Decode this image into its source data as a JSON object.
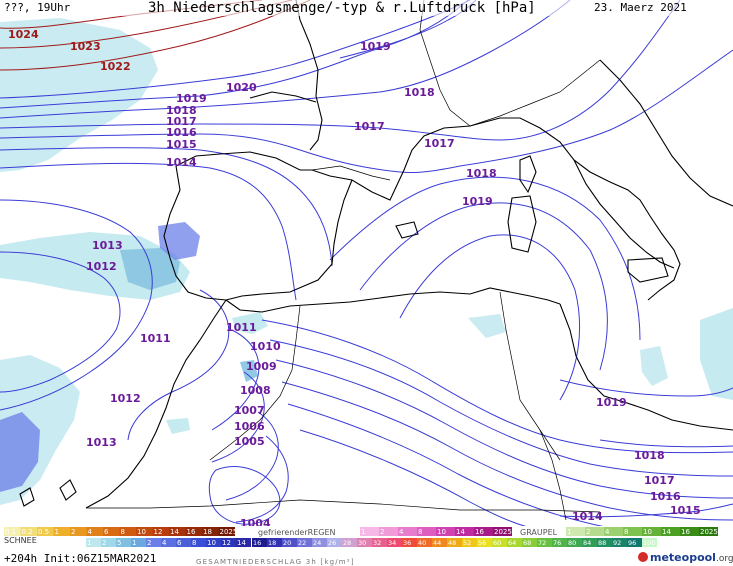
{
  "header": {
    "left": "???, 19Uhr",
    "title": "3h Niederschlagsmenge/-typ & r.Luftdruck [hPa]",
    "date": "23. Maerz 2021"
  },
  "colors": {
    "isobar_blue": "#3b3bd6",
    "isobar_purple": "#6a1b9a",
    "isobar_darkred": "#a01818",
    "coast": "#000000",
    "precip_light": "#bfe8ee",
    "precip_mid": "#7fbfe0",
    "precip_blue": "#6b7fe8",
    "precip_dark": "#3b4fd6"
  },
  "isobar_labels": [
    {
      "text": "1024",
      "tone": "darkred"
    },
    {
      "text": "1023",
      "tone": "darkred"
    },
    {
      "text": "1022",
      "tone": "darkred"
    },
    {
      "text": "1020",
      "tone": "purple"
    },
    {
      "text": "1019",
      "tone": "purple"
    },
    {
      "text": "1019",
      "tone": "purple"
    },
    {
      "text": "1018",
      "tone": "purple"
    },
    {
      "text": "1017",
      "tone": "purple"
    },
    {
      "text": "1016",
      "tone": "purple"
    },
    {
      "text": "1015",
      "tone": "purple"
    },
    {
      "text": "1014",
      "tone": "purple"
    },
    {
      "text": "1017",
      "tone": "purple"
    },
    {
      "text": "1018",
      "tone": "purple"
    },
    {
      "text": "1017",
      "tone": "purple"
    },
    {
      "text": "1018",
      "tone": "purple"
    },
    {
      "text": "1019",
      "tone": "purple"
    },
    {
      "text": "1013",
      "tone": "purple"
    },
    {
      "text": "1012",
      "tone": "purple"
    },
    {
      "text": "1011",
      "tone": "purple"
    },
    {
      "text": "1011",
      "tone": "purple"
    },
    {
      "text": "1010",
      "tone": "purple"
    },
    {
      "text": "1009",
      "tone": "purple"
    },
    {
      "text": "1008",
      "tone": "purple"
    },
    {
      "text": "1007",
      "tone": "purple"
    },
    {
      "text": "1006",
      "tone": "purple"
    },
    {
      "text": "1005",
      "tone": "purple"
    },
    {
      "text": "1012",
      "tone": "purple"
    },
    {
      "text": "1013",
      "tone": "purple"
    },
    {
      "text": "1004",
      "tone": "purple"
    },
    {
      "text": "1019",
      "tone": "purple"
    },
    {
      "text": "1018",
      "tone": "purple"
    },
    {
      "text": "1017",
      "tone": "purple"
    },
    {
      "text": "1016",
      "tone": "purple"
    },
    {
      "text": "1015",
      "tone": "purple"
    },
    {
      "text": "1014",
      "tone": "purple"
    }
  ],
  "legend": {
    "schnee_label": "SCHNEE",
    "schnee_top": [
      "0.1",
      "0.2",
      "0.5",
      "1",
      "2",
      "4",
      "6",
      "8",
      "10",
      "12",
      "14",
      "16",
      "18",
      "2025+"
    ],
    "schnee_bottom": [
      "1",
      "2",
      "5",
      "1",
      "2",
      "4",
      "6",
      "8",
      "10",
      "12",
      "14"
    ],
    "regen_label": "gefrierenderREGEN",
    "regen_values": [
      "1",
      "2",
      "4",
      "8",
      "10",
      "14",
      "16",
      "2025+"
    ],
    "graupel_label": "GRAUPEL",
    "graupel_values": [
      "1",
      "2",
      "4",
      "8",
      "10",
      "14",
      "16",
      "2025+"
    ],
    "total_label": "GESAMTNIEDERSCHLAG 3h [kg/m²]",
    "total_values": [
      "16",
      "18",
      "20",
      "22",
      "24",
      "26",
      "28",
      "30",
      "32",
      "34",
      "36",
      "40",
      "44",
      "48",
      "52",
      "56",
      "60",
      "64",
      "68",
      "72",
      "76",
      "80",
      "84",
      "88",
      "92",
      "96",
      "100"
    ],
    "schnee_colors": [
      "#f6f0b0",
      "#f2de78",
      "#f0c84a",
      "#eeb02a",
      "#e8981e",
      "#e08018",
      "#d86a12",
      "#cf5a10",
      "#c24a0e",
      "#b83c0c",
      "#a8320a",
      "#962a08",
      "#842206",
      "#701a04"
    ],
    "blue_colors": [
      "#bfe8ee",
      "#9fd8e8",
      "#7fbfe0",
      "#6aa8e0",
      "#6b7fe8",
      "#5a6fe0",
      "#4a5fd8",
      "#3b4fd6",
      "#2f3fc8",
      "#2a34b8",
      "#2a2aa8"
    ],
    "regen_colors": [
      "#f6b8e6",
      "#f09ad8",
      "#e87ccc",
      "#de5ec0",
      "#d042b0",
      "#c02aa0",
      "#a81a88",
      "#901070"
    ],
    "graupel_colors": [
      "#cfe8b0",
      "#b5dc8e",
      "#9bd06e",
      "#80c250",
      "#66b238",
      "#4ea024",
      "#3a8c16",
      "#287a0c"
    ],
    "total_colors": [
      "#1c1c90",
      "#3232b0",
      "#5050c8",
      "#7070d8",
      "#9090e0",
      "#b0b0e8",
      "#d0a0d0",
      "#e080b0",
      "#e86090",
      "#ee4a70",
      "#f04a3a",
      "#f06a2a",
      "#f08a20",
      "#f0aa18",
      "#f0c818",
      "#e8e020",
      "#c8e028",
      "#a8d830",
      "#88cc38",
      "#68c040",
      "#50b448",
      "#40a850",
      "#309c58",
      "#209060",
      "#188468",
      "#107870",
      "#c8f8c8"
    ]
  },
  "footer": {
    "run": "+204h Init:06Z15MAR2021",
    "brand": "meteopool",
    "brand_tld": ".org"
  }
}
